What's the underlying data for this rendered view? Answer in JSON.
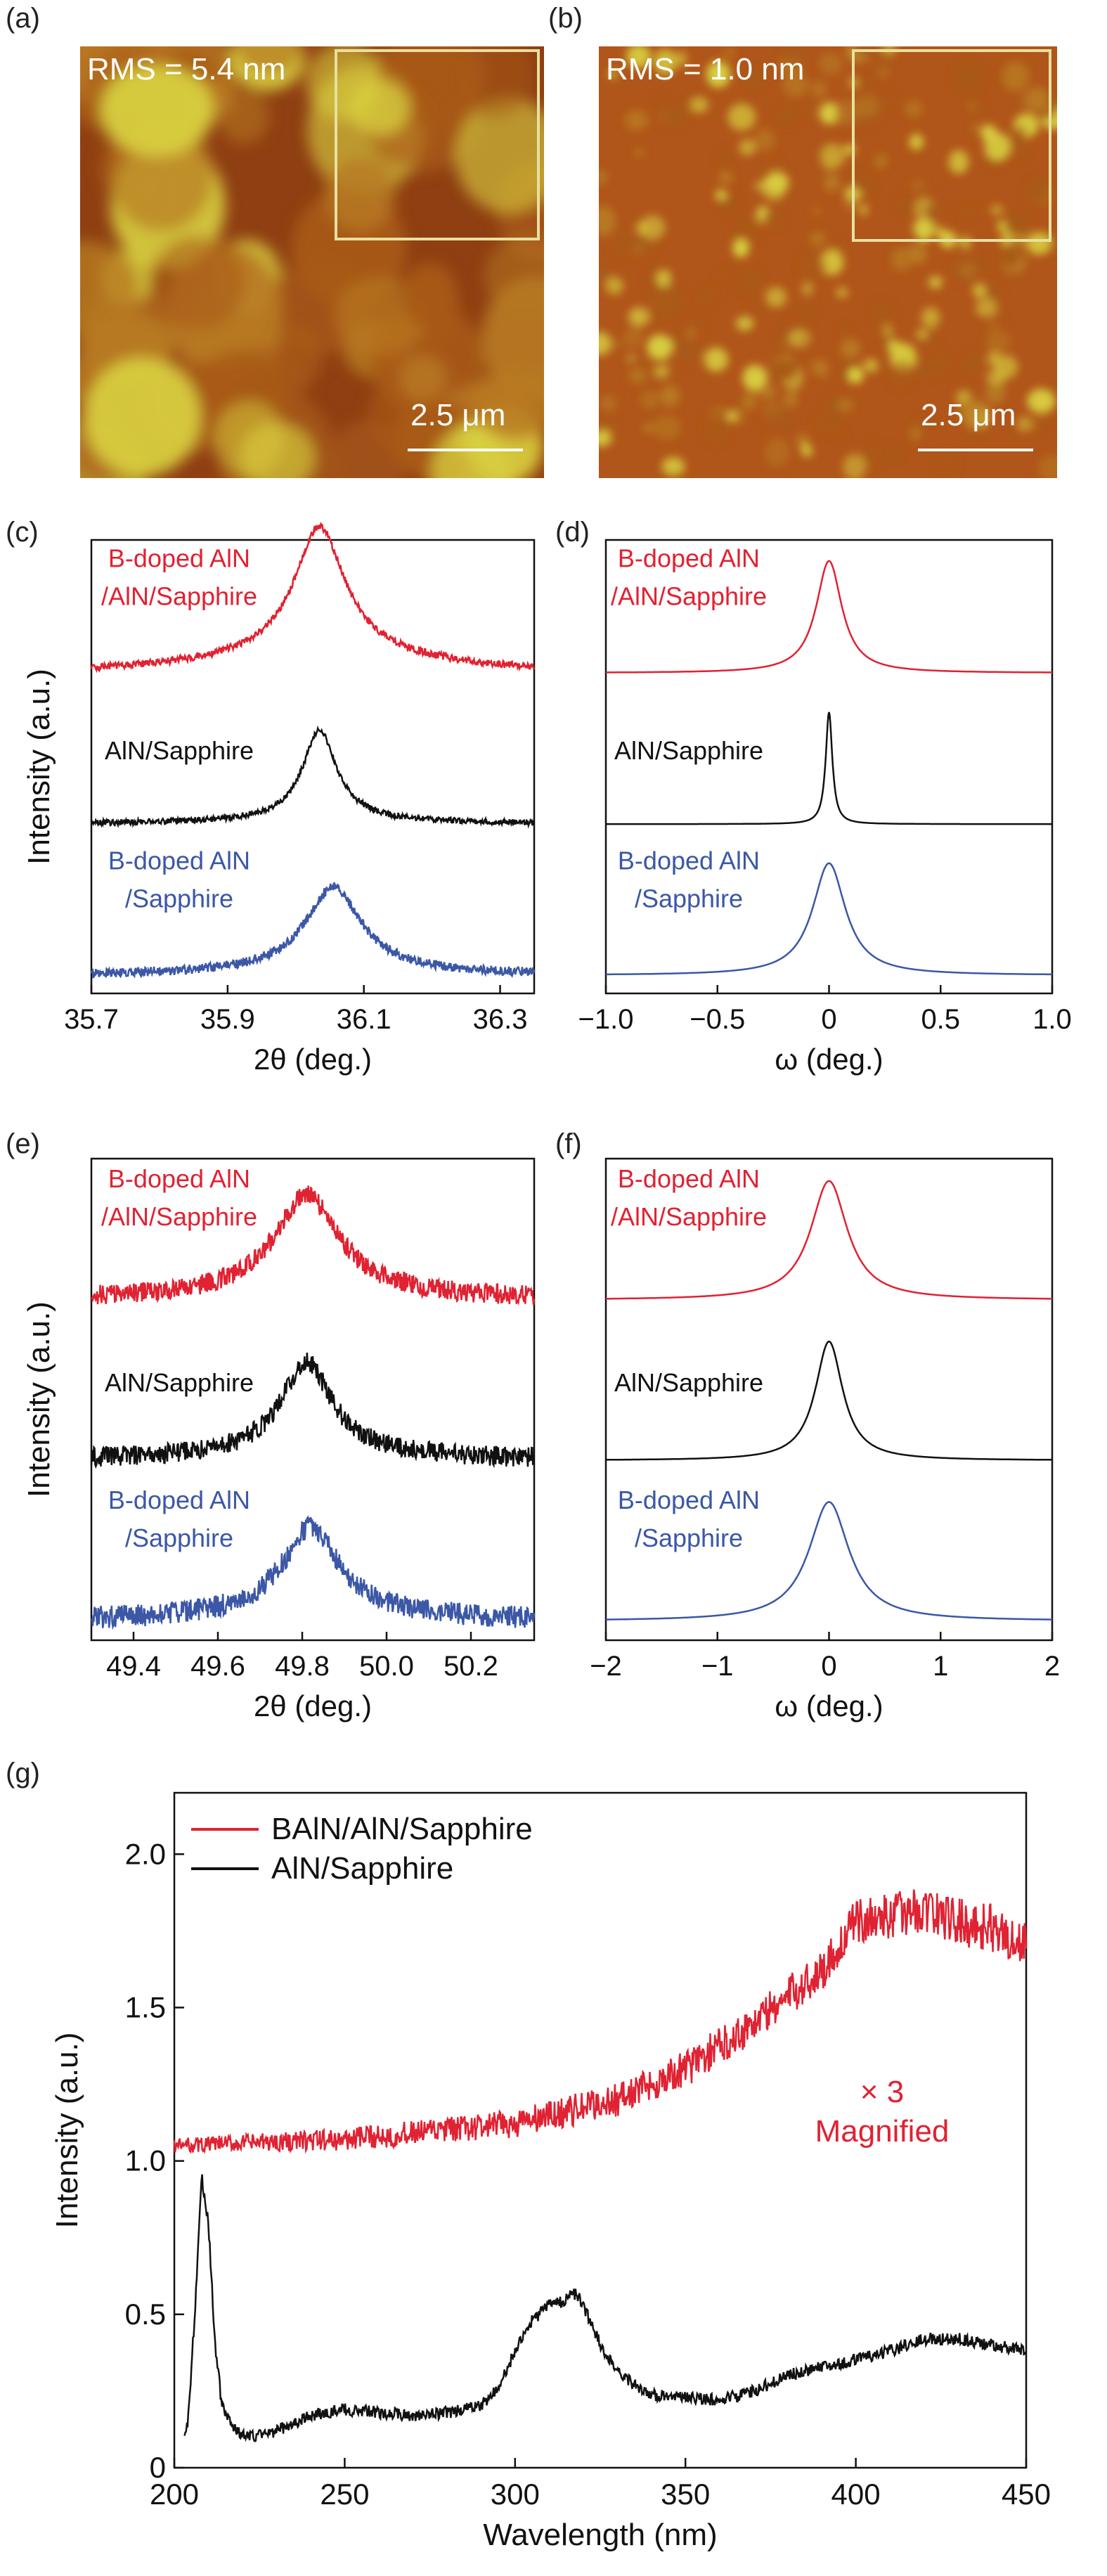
{
  "panels": {
    "a": "(a)",
    "b": "(b)",
    "c": "(c)",
    "d": "(d)",
    "e": "(e)",
    "f": "(f)",
    "g": "(g)"
  },
  "afm": [
    {
      "id": "a",
      "rms_label": "RMS = 5.4 nm",
      "scale_label": "2.5 μm",
      "texture": "grains"
    },
    {
      "id": "b",
      "rms_label": "RMS = 1.0 nm",
      "scale_label": "2.5 μm",
      "texture": "fine"
    }
  ],
  "colors": {
    "red": "#e02232",
    "black": "#111111",
    "blue": "#3b57a6",
    "afm_dark": "#8a3a10",
    "afm_light": "#d8d040",
    "inset_border": "#e6e0a0"
  },
  "chart_data": [
    {
      "id": "c",
      "type": "line",
      "xlabel": "2θ (deg.)",
      "ylabel": "Intensity (a.u.)",
      "xlim": [
        35.7,
        36.35
      ],
      "xticks": [
        "35.7",
        "35.9",
        "36.1",
        "36.3"
      ],
      "xtick_values": [
        35.7,
        35.9,
        36.1,
        36.3
      ],
      "series": [
        {
          "name": "B-doped AlN /AlN/Sapphire",
          "label_lines": [
            "B-doped AlN",
            "/AlN/Sapphire"
          ],
          "color": "#e02232",
          "offset": 2.0,
          "center": 36.035,
          "width": 0.045,
          "height": 1.0,
          "base": 0.25,
          "slope": 0.0,
          "noise": 0.03
        },
        {
          "name": "AlN/Sapphire",
          "label_lines": [
            "AlN/Sapphire"
          ],
          "color": "#111111",
          "offset": 1.0,
          "center": 36.035,
          "width": 0.03,
          "height": 0.75,
          "base": 0.05,
          "slope": 0.0,
          "noise": 0.025
        },
        {
          "name": "B-doped AlN /Sapphire",
          "label_lines": [
            "B-doped AlN",
            "/Sapphire"
          ],
          "color": "#3b57a6",
          "offset": 0.0,
          "center": 36.055,
          "width": 0.05,
          "height": 0.7,
          "base": 0.05,
          "slope": 0.0,
          "noise": 0.04
        }
      ]
    },
    {
      "id": "d",
      "type": "line",
      "xlabel": "ω (deg.)",
      "ylabel": "",
      "xlim": [
        -1.0,
        1.0
      ],
      "xticks": [
        "−1.0",
        "−0.5",
        "0",
        "0.5",
        "1.0"
      ],
      "xtick_values": [
        -1.0,
        -0.5,
        0.0,
        0.5,
        1.0
      ],
      "series": [
        {
          "name": "B-doped AlN /AlN/Sapphire",
          "label_lines": [
            "B-doped AlN",
            "/AlN/Sapphire"
          ],
          "color": "#e02232",
          "offset": 2.0,
          "center": 0.0,
          "width": 0.07,
          "height": 0.95,
          "base": 0.0,
          "slope": 0.0,
          "noise": 0.0
        },
        {
          "name": "AlN/Sapphire",
          "label_lines": [
            "AlN/Sapphire"
          ],
          "color": "#111111",
          "offset": 1.0,
          "center": 0.0,
          "width": 0.018,
          "height": 0.95,
          "base": 0.0,
          "slope": 0.0,
          "noise": 0.0
        },
        {
          "name": "B-doped AlN /Sapphire",
          "label_lines": [
            "B-doped AlN",
            "/Sapphire"
          ],
          "color": "#3b57a6",
          "offset": 0.0,
          "center": 0.0,
          "width": 0.09,
          "height": 0.95,
          "base": 0.0,
          "slope": 0.0,
          "noise": 0.0
        }
      ]
    },
    {
      "id": "e",
      "type": "line",
      "xlabel": "2θ (deg.)",
      "ylabel": "Intensity (a.u.)",
      "xlim": [
        49.3,
        50.35
      ],
      "xticks": [
        "49.4",
        "49.6",
        "49.8",
        "50.0",
        "50.2"
      ],
      "xtick_values": [
        49.4,
        49.6,
        49.8,
        50.0,
        50.2
      ],
      "series": [
        {
          "name": "B-doped AlN /AlN/Sapphire",
          "label_lines": [
            "B-doped AlN",
            "/AlN/Sapphire"
          ],
          "color": "#e02232",
          "offset": 2.0,
          "center": 49.81,
          "width": 0.09,
          "height": 0.75,
          "base": 0.1,
          "slope": 0.0,
          "noise": 0.08
        },
        {
          "name": "AlN/Sapphire",
          "label_lines": [
            "AlN/Sapphire"
          ],
          "color": "#111111",
          "offset": 1.0,
          "center": 49.81,
          "width": 0.07,
          "height": 0.7,
          "base": 0.1,
          "slope": 0.0,
          "noise": 0.08
        },
        {
          "name": "B-doped AlN /Sapphire",
          "label_lines": [
            "B-doped AlN",
            "/Sapphire"
          ],
          "color": "#3b57a6",
          "offset": 0.0,
          "center": 49.82,
          "width": 0.08,
          "height": 0.65,
          "base": 0.1,
          "slope": 0.0,
          "noise": 0.09
        }
      ]
    },
    {
      "id": "f",
      "type": "line",
      "xlabel": "ω (deg.)",
      "ylabel": "",
      "xlim": [
        -2.0,
        2.0
      ],
      "xticks": [
        "−2",
        "−1",
        "0",
        "1",
        "2"
      ],
      "xtick_values": [
        -2.0,
        -1.0,
        0.0,
        1.0,
        2.0
      ],
      "series": [
        {
          "name": "B-doped AlN /AlN/Sapphire",
          "label_lines": [
            "B-doped AlN",
            "/AlN/Sapphire"
          ],
          "color": "#e02232",
          "offset": 2.0,
          "center": 0.0,
          "width": 0.2,
          "height": 0.95,
          "base": 0.0,
          "slope": 0.0,
          "noise": 0.0
        },
        {
          "name": "AlN/Sapphire",
          "label_lines": [
            "AlN/Sapphire"
          ],
          "color": "#111111",
          "offset": 1.0,
          "center": 0.0,
          "width": 0.15,
          "height": 0.95,
          "base": 0.0,
          "slope": 0.0,
          "noise": 0.0
        },
        {
          "name": "B-doped AlN /Sapphire",
          "label_lines": [
            "B-doped AlN",
            "/Sapphire"
          ],
          "color": "#3b57a6",
          "offset": 0.0,
          "center": 0.0,
          "width": 0.22,
          "height": 0.95,
          "base": 0.0,
          "slope": 0.0,
          "noise": 0.0
        }
      ]
    },
    {
      "id": "g",
      "type": "line",
      "xlabel": "Wavelength (nm)",
      "ylabel": "Intensity (a.u.)",
      "xlim": [
        200,
        450
      ],
      "ylim": [
        0,
        2.2
      ],
      "xticks": [
        "200",
        "250",
        "300",
        "350",
        "400",
        "450"
      ],
      "xtick_values": [
        200,
        250,
        300,
        350,
        400,
        450
      ],
      "yticks": [
        "0",
        "0.5",
        "1.0",
        "1.5",
        "2.0"
      ],
      "ytick_values": [
        0,
        0.5,
        1.0,
        1.5,
        2.0
      ],
      "legend": [
        {
          "label": "BAlN/AlN/Sapphire",
          "color": "#e02232"
        },
        {
          "label": "AlN/Sapphire",
          "color": "#111111"
        }
      ],
      "annotation_lines": [
        "× 3",
        "Magnified"
      ],
      "series": [
        {
          "name": "BAlN/AlN/Sapphire",
          "color": "#e02232",
          "x": [
            200,
            250,
            300,
            330,
            350,
            370,
            390,
            400,
            410,
            420,
            430,
            440,
            450
          ],
          "y": [
            1.05,
            1.07,
            1.12,
            1.2,
            1.3,
            1.45,
            1.62,
            1.78,
            1.8,
            1.82,
            1.78,
            1.76,
            1.7
          ]
        },
        {
          "name": "AlN/Sapphire",
          "color": "#111111",
          "x": [
            200,
            204,
            206,
            208,
            210,
            212,
            214,
            218,
            222,
            230,
            240,
            250,
            260,
            270,
            280,
            290,
            295,
            300,
            305,
            310,
            315,
            318,
            322,
            326,
            330,
            335,
            340,
            345,
            350,
            360,
            370,
            380,
            390,
            400,
            410,
            420,
            430,
            440,
            450
          ],
          "y": [
            0.0,
            0.15,
            0.5,
            0.95,
            0.8,
            0.4,
            0.2,
            0.12,
            0.1,
            0.12,
            0.17,
            0.19,
            0.18,
            0.17,
            0.18,
            0.2,
            0.26,
            0.38,
            0.48,
            0.53,
            0.55,
            0.57,
            0.48,
            0.38,
            0.32,
            0.27,
            0.24,
            0.23,
            0.23,
            0.22,
            0.25,
            0.3,
            0.33,
            0.35,
            0.38,
            0.42,
            0.42,
            0.4,
            0.38
          ]
        }
      ]
    }
  ]
}
